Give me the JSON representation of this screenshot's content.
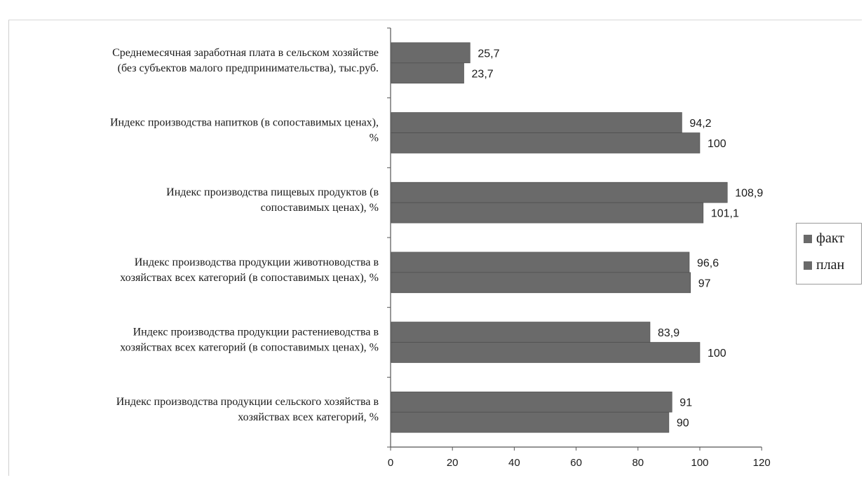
{
  "chart_data": {
    "type": "bar",
    "orientation": "horizontal",
    "categories": [
      [
        "Среднемесячная заработная плата  в сельском хозяйстве",
        "(без субъектов малого предпринимательства),  тыс.руб."
      ],
      [
        "Индекс производства напитков  (в сопоставимых ценах),",
        "%"
      ],
      [
        "Индекс производства пищевых  продуктов (в",
        "сопоставимых ценах), %"
      ],
      [
        "Индекс производства продукции  животноводства в",
        "хозяйствах всех категорий  (в сопоставимых ценах), %"
      ],
      [
        "Индекс производства продукции  растениеводства в",
        "хозяйствах всех категорий  (в сопоставимых ценах), %"
      ],
      [
        "Индекс производства продукции  сельского хозяйства в",
        "хозяйствах всех категорий, %"
      ]
    ],
    "series": [
      {
        "name": "факт",
        "values": [
          25.7,
          94.2,
          108.9,
          96.6,
          83.9,
          91
        ],
        "labels": [
          "25,7",
          "94,2",
          "108,9",
          "96,6",
          "83,9",
          "91"
        ]
      },
      {
        "name": "план",
        "values": [
          23.7,
          100,
          101.1,
          97,
          100,
          90
        ],
        "labels": [
          "23,7",
          "100",
          "101,1",
          "97",
          "100",
          "90"
        ]
      }
    ],
    "xlim": [
      0,
      120
    ],
    "xticks": [
      "0",
      "20",
      "40",
      "60",
      "80",
      "100",
      "120"
    ],
    "title": "",
    "xlabel": "",
    "ylabel": "",
    "legend_position": "right",
    "bar_color": "#6a6a6a"
  }
}
